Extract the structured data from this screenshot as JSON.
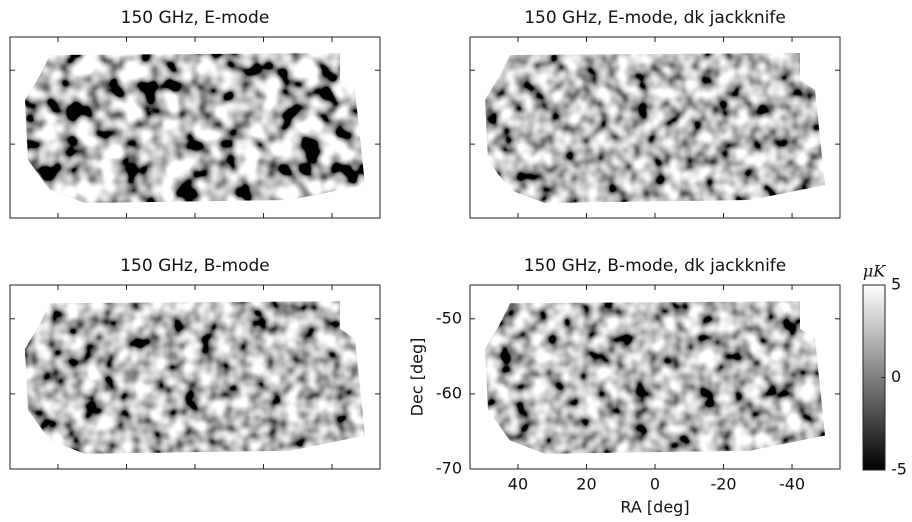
{
  "chart_data": [
    {
      "type": "map",
      "title": "150 GHz, E-mode"
    },
    {
      "type": "map",
      "title": "150 GHz, E-mode, dk jackknife"
    },
    {
      "type": "map",
      "title": "150 GHz, B-mode"
    },
    {
      "type": "map",
      "title": "150 GHz, B-mode, dk jackknife",
      "xlabel": "RA [deg]",
      "ylabel": "Dec [deg]",
      "xlim": [
        54,
        -54
      ],
      "xticks": [
        40,
        20,
        0,
        -20,
        -40
      ],
      "ylim": [
        -70,
        -45.5
      ],
      "yticks": [
        -50,
        -60,
        -70
      ],
      "colorbar_label": "μK",
      "clim": [
        -5,
        5
      ],
      "cticks": [
        5,
        0,
        -5
      ]
    }
  ]
}
